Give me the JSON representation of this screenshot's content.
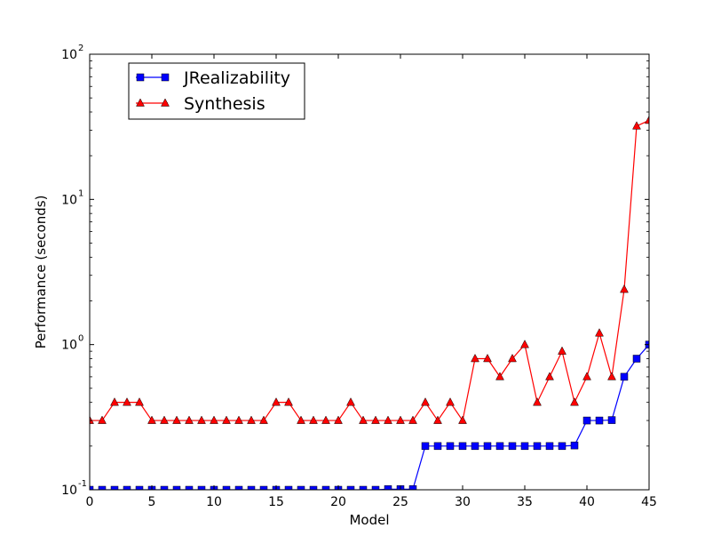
{
  "chart_data": {
    "type": "line",
    "title": "",
    "xlabel": "Model",
    "ylabel": "Performance (seconds)",
    "xlim": [
      0,
      45
    ],
    "ylim": [
      0.1,
      100
    ],
    "yscale": "log",
    "grid": false,
    "legend_position": "top-left",
    "x_ticks": [
      "0",
      "5",
      "10",
      "15",
      "20",
      "25",
      "30",
      "35",
      "40",
      "45"
    ],
    "y_ticks": [
      {
        "base": "10",
        "exp": "-1"
      },
      {
        "base": "10",
        "exp": "0"
      },
      {
        "base": "10",
        "exp": "1"
      },
      {
        "base": "10",
        "exp": "2"
      }
    ],
    "x": [
      0,
      1,
      2,
      3,
      4,
      5,
      6,
      7,
      8,
      9,
      10,
      11,
      12,
      13,
      14,
      15,
      16,
      17,
      18,
      19,
      20,
      21,
      22,
      23,
      24,
      25,
      26,
      27,
      28,
      29,
      30,
      31,
      32,
      33,
      34,
      35,
      36,
      37,
      38,
      39,
      40,
      41,
      42,
      43,
      44,
      45
    ],
    "series": [
      {
        "name": "JRealizability",
        "color": "#0000ff",
        "marker": "square",
        "values": [
          0.1,
          0.1,
          0.1,
          0.1,
          0.1,
          0.1,
          0.1,
          0.1,
          0.1,
          0.1,
          0.1,
          0.1,
          0.1,
          0.1,
          0.1,
          0.1,
          0.1,
          0.1,
          0.1,
          0.1,
          0.1,
          0.1,
          0.1,
          0.1,
          0.101,
          0.101,
          0.101,
          0.2,
          0.2,
          0.2,
          0.2,
          0.2,
          0.2,
          0.2,
          0.2,
          0.2,
          0.2,
          0.2,
          0.2,
          0.202,
          0.3,
          0.3,
          0.302,
          0.6,
          0.8,
          1.0
        ]
      },
      {
        "name": "Synthesis",
        "color": "#ff0000",
        "marker": "triangle",
        "values": [
          0.3,
          0.3,
          0.4,
          0.4,
          0.4,
          0.3,
          0.3,
          0.3,
          0.3,
          0.3,
          0.3,
          0.3,
          0.3,
          0.3,
          0.3,
          0.4,
          0.4,
          0.3,
          0.3,
          0.3,
          0.3,
          0.4,
          0.3,
          0.3,
          0.3,
          0.3,
          0.3,
          0.4,
          0.3,
          0.4,
          0.3,
          0.8,
          0.8,
          0.6,
          0.8,
          1.0,
          0.4,
          0.6,
          0.9,
          0.4,
          0.6,
          1.2,
          0.6,
          2.4,
          32,
          35
        ]
      }
    ]
  }
}
